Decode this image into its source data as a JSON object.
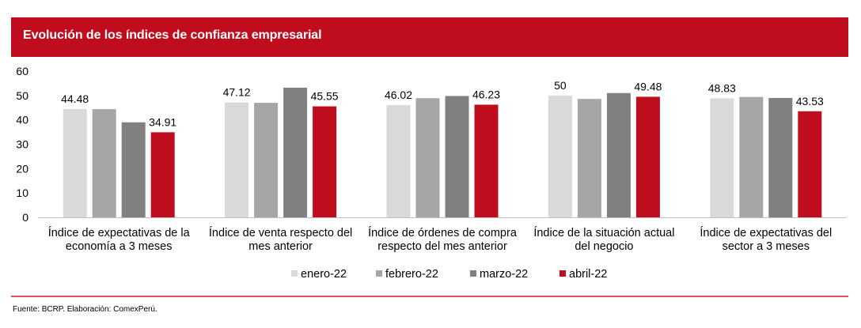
{
  "header": {
    "title": "Evolución de los índices de confianza empresarial"
  },
  "footer": {
    "source": "Fuente: BCRP. Elaboración: ComexPerú."
  },
  "colors": {
    "header_bg": "#c00d1e",
    "rule": "#e2515c",
    "series": [
      "#d9d9d9",
      "#a6a6a6",
      "#808080",
      "#c00d1e"
    ]
  },
  "chart_data": {
    "type": "bar",
    "title": "Evolución de los índices de confianza empresarial",
    "xlabel": "",
    "ylabel": "",
    "ylim": [
      0,
      60
    ],
    "yticks": [
      "0",
      "10",
      "20",
      "30",
      "40",
      "50",
      "60"
    ],
    "grid": false,
    "legend_position": "bottom",
    "categories": [
      [
        "Índice de expectativas de la",
        "economía a 3 meses"
      ],
      [
        "Índice de venta respecto del",
        "mes anterior"
      ],
      [
        "Índice de órdenes de compra",
        "respecto del mes anterior"
      ],
      [
        "Índice de la situación actual",
        "del negocio"
      ],
      [
        "Índice de expectativas del",
        "sector a 3 meses"
      ]
    ],
    "series": [
      {
        "name": "enero-22",
        "values": [
          44.48,
          47.12,
          46.02,
          50,
          48.83
        ],
        "labels": [
          "44.48",
          "47.12",
          "46.02",
          "50",
          "48.83"
        ]
      },
      {
        "name": "febrero-22",
        "values": [
          44.4,
          47.0,
          48.9,
          48.6,
          49.4
        ],
        "labels": [
          null,
          null,
          null,
          null,
          null
        ]
      },
      {
        "name": "marzo-22",
        "values": [
          39.0,
          53.2,
          49.8,
          51.0,
          49.0
        ],
        "labels": [
          null,
          null,
          null,
          null,
          null
        ]
      },
      {
        "name": "abril-22",
        "values": [
          34.91,
          45.55,
          46.23,
          49.48,
          43.53
        ],
        "labels": [
          "34.91",
          "45.55",
          "46.23",
          "49.48",
          "43.53"
        ]
      }
    ]
  }
}
